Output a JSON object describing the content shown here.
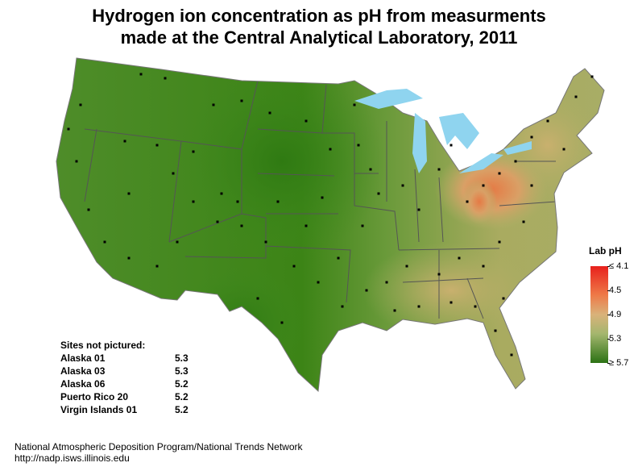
{
  "title_line1": "Hydrogen ion concentration as pH from measurments",
  "title_line2": "made at the Central Analytical Laboratory, 2011",
  "legend": {
    "title": "Lab pH",
    "ticks": [
      "≤ 4.1",
      "4.5",
      "4.9",
      "5.3",
      "≥ 5.7"
    ],
    "colors": {
      "low": "#e8211c",
      "mid": "#d9b27a",
      "high": "#2c7214"
    }
  },
  "sites_not_pictured": {
    "heading": "Sites not pictured:",
    "rows": [
      {
        "name": "Alaska 01",
        "value": "5.3"
      },
      {
        "name": "Alaska 03",
        "value": "5.3"
      },
      {
        "name": "Alaska 06",
        "value": "5.2"
      },
      {
        "name": "Puerto Rico 20",
        "value": "5.2"
      },
      {
        "name": "Virgin Islands 01",
        "value": "5.2"
      }
    ]
  },
  "footer": {
    "line1": "National Atmospheric Deposition Program/National Trends Network",
    "line2": "http://nadp.isws.illinois.edu"
  }
}
